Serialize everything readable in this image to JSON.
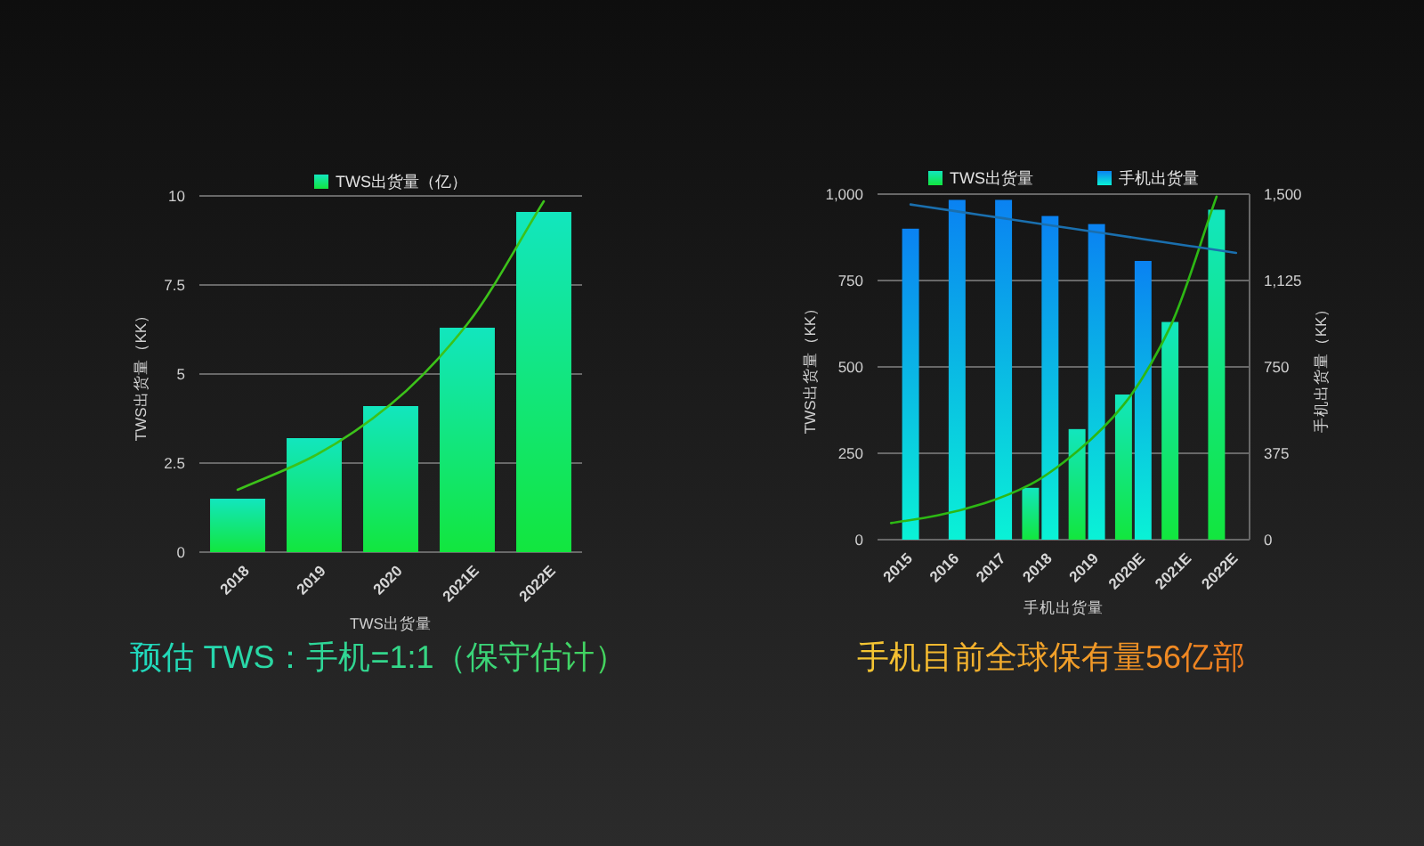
{
  "chart_data": [
    {
      "type": "bar",
      "categories": [
        "2018",
        "2019",
        "2020",
        "2021E",
        "2022E"
      ],
      "xlabel": "TWS出货量",
      "ylabel": "TWS出货量（KK）",
      "ylim": [
        0,
        10
      ],
      "yticks": [
        0,
        2.5,
        5,
        7.5,
        10
      ],
      "grid": "y",
      "legend": "top",
      "series": [
        {
          "name": "TWS出货量（亿）",
          "color": "#12e67e",
          "values": [
            1.5,
            3.2,
            4.1,
            6.3,
            9.55
          ]
        },
        {
          "type": "line",
          "color": "#3cc21a",
          "values": [
            1.75,
            2.7,
            4.15,
            6.4,
            9.85
          ]
        }
      ],
      "annotations": [
        "预估 TWS：手机=1:1（保守估计）"
      ]
    },
    {
      "type": "bar",
      "categories": [
        "2015",
        "2016",
        "2017",
        "2018",
        "2019",
        "2020E",
        "2021E",
        "2022E"
      ],
      "xlabel": "手机出货量",
      "ylabel": "TWS出货量（KK）",
      "y2label": "手机出货量（KK）",
      "ylim": [
        0,
        1000
      ],
      "yticks": [
        0,
        250,
        500,
        750,
        {
          "value": 1000,
          "label": "1,000"
        }
      ],
      "y2lim": [
        0,
        1500
      ],
      "y2ticks": [
        0,
        375,
        750,
        {
          "value": 1125,
          "label": "1,125"
        },
        {
          "value": 1500,
          "label": "1,500"
        }
      ],
      "grid": "y",
      "legend": "top",
      "series": [
        {
          "name": "TWS出货量",
          "color": "#12e67e",
          "values": [
            null,
            null,
            null,
            150,
            320,
            420,
            630,
            955
          ]
        },
        {
          "name": "手机出货量",
          "color": "#0ac8f2",
          "axis": "y2",
          "values": [
            1350,
            1475,
            1475,
            1405,
            1370,
            1210,
            null,
            null
          ]
        },
        {
          "type": "line",
          "color": "#2db814",
          "values": [
            48,
            70,
            105,
            160,
            255,
            390,
            615,
            993
          ]
        },
        {
          "type": "line",
          "color": "#1a6fae",
          "axis": "y2",
          "values": [
            1455,
            1425,
            1395,
            1365,
            1335,
            1305,
            1275,
            1245
          ]
        }
      ],
      "annotations": [
        "手机目前全球保有量56亿部"
      ]
    }
  ]
}
